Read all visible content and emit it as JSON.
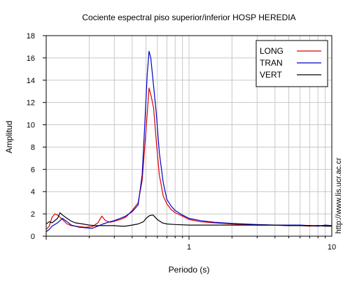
{
  "chart_data": {
    "type": "line",
    "title": "Cociente espectral piso superior/inferior  HOSP HEREDIA",
    "xlabel": "Periodo (s)",
    "ylabel": "Amplitud",
    "x_scale": "log",
    "xlim": [
      0.1,
      10
    ],
    "ylim": [
      0,
      18
    ],
    "x_ticks": [
      {
        "value": 1,
        "label": "1"
      },
      {
        "value": 10,
        "label": "10"
      }
    ],
    "y_ticks": [
      0,
      2,
      4,
      6,
      8,
      10,
      12,
      14,
      16,
      18
    ],
    "grid": true,
    "legend_position": "top-right",
    "side_note": "http://www.lis.ucr.ac.cr",
    "series": [
      {
        "name": "LONG",
        "color": "#dd0000",
        "points": [
          [
            0.1,
            0.6
          ],
          [
            0.105,
            0.9
          ],
          [
            0.11,
            1.7
          ],
          [
            0.115,
            2.0
          ],
          [
            0.12,
            1.9
          ],
          [
            0.13,
            1.5
          ],
          [
            0.14,
            1.1
          ],
          [
            0.15,
            0.95
          ],
          [
            0.17,
            0.85
          ],
          [
            0.19,
            0.8
          ],
          [
            0.21,
            0.85
          ],
          [
            0.23,
            1.2
          ],
          [
            0.245,
            1.8
          ],
          [
            0.26,
            1.4
          ],
          [
            0.28,
            1.25
          ],
          [
            0.3,
            1.35
          ],
          [
            0.33,
            1.5
          ],
          [
            0.36,
            1.7
          ],
          [
            0.4,
            2.3
          ],
          [
            0.44,
            3.0
          ],
          [
            0.47,
            5.0
          ],
          [
            0.49,
            8.0
          ],
          [
            0.51,
            11.0
          ],
          [
            0.525,
            13.3
          ],
          [
            0.545,
            12.5
          ],
          [
            0.565,
            11.5
          ],
          [
            0.59,
            8.5
          ],
          [
            0.62,
            5.5
          ],
          [
            0.66,
            3.6
          ],
          [
            0.7,
            2.9
          ],
          [
            0.75,
            2.4
          ],
          [
            0.8,
            2.1
          ],
          [
            0.9,
            1.8
          ],
          [
            1.0,
            1.5
          ],
          [
            1.2,
            1.3
          ],
          [
            1.5,
            1.2
          ],
          [
            2,
            1.1
          ],
          [
            3,
            1.0
          ],
          [
            4,
            1.0
          ],
          [
            5,
            0.95
          ],
          [
            6,
            0.95
          ],
          [
            7,
            0.9
          ],
          [
            8,
            0.95
          ],
          [
            9,
            0.95
          ],
          [
            10,
            0.9
          ]
        ]
      },
      {
        "name": "TRAN",
        "color": "#0000cc",
        "points": [
          [
            0.1,
            0.4
          ],
          [
            0.105,
            0.6
          ],
          [
            0.11,
            0.9
          ],
          [
            0.12,
            1.2
          ],
          [
            0.13,
            1.6
          ],
          [
            0.14,
            1.3
          ],
          [
            0.15,
            1.0
          ],
          [
            0.17,
            0.8
          ],
          [
            0.19,
            0.75
          ],
          [
            0.21,
            0.7
          ],
          [
            0.23,
            0.9
          ],
          [
            0.25,
            1.1
          ],
          [
            0.28,
            1.3
          ],
          [
            0.3,
            1.4
          ],
          [
            0.33,
            1.6
          ],
          [
            0.36,
            1.8
          ],
          [
            0.4,
            2.2
          ],
          [
            0.44,
            2.8
          ],
          [
            0.47,
            5.5
          ],
          [
            0.49,
            10.0
          ],
          [
            0.51,
            14.5
          ],
          [
            0.525,
            16.6
          ],
          [
            0.54,
            16.0
          ],
          [
            0.56,
            14.0
          ],
          [
            0.59,
            11.0
          ],
          [
            0.62,
            7.5
          ],
          [
            0.66,
            4.8
          ],
          [
            0.7,
            3.3
          ],
          [
            0.75,
            2.7
          ],
          [
            0.8,
            2.3
          ],
          [
            0.9,
            1.9
          ],
          [
            1.0,
            1.6
          ],
          [
            1.2,
            1.4
          ],
          [
            1.5,
            1.25
          ],
          [
            2,
            1.15
          ],
          [
            3,
            1.05
          ],
          [
            4,
            1.0
          ],
          [
            5,
            1.0
          ],
          [
            6,
            1.0
          ],
          [
            7,
            0.95
          ],
          [
            8,
            0.9
          ],
          [
            9,
            1.0
          ],
          [
            10,
            0.95
          ]
        ]
      },
      {
        "name": "VERT",
        "color": "#000000",
        "points": [
          [
            0.1,
            1.1
          ],
          [
            0.105,
            1.3
          ],
          [
            0.11,
            1.2
          ],
          [
            0.12,
            1.6
          ],
          [
            0.125,
            2.1
          ],
          [
            0.13,
            1.9
          ],
          [
            0.14,
            1.6
          ],
          [
            0.15,
            1.35
          ],
          [
            0.16,
            1.2
          ],
          [
            0.18,
            1.1
          ],
          [
            0.2,
            1.0
          ],
          [
            0.22,
            0.95
          ],
          [
            0.25,
            0.95
          ],
          [
            0.28,
            0.95
          ],
          [
            0.3,
            0.95
          ],
          [
            0.33,
            0.9
          ],
          [
            0.36,
            0.9
          ],
          [
            0.4,
            1.0
          ],
          [
            0.44,
            1.1
          ],
          [
            0.48,
            1.3
          ],
          [
            0.5,
            1.6
          ],
          [
            0.53,
            1.85
          ],
          [
            0.56,
            1.9
          ],
          [
            0.6,
            1.5
          ],
          [
            0.65,
            1.2
          ],
          [
            0.7,
            1.1
          ],
          [
            0.8,
            1.05
          ],
          [
            1.0,
            1.0
          ],
          [
            1.5,
            1.0
          ],
          [
            2,
            1.0
          ],
          [
            3,
            1.0
          ],
          [
            4,
            1.0
          ],
          [
            5,
            0.95
          ],
          [
            6,
            0.95
          ],
          [
            7,
            0.95
          ],
          [
            8,
            0.95
          ],
          [
            9,
            0.9
          ],
          [
            10,
            0.9
          ]
        ]
      }
    ]
  }
}
